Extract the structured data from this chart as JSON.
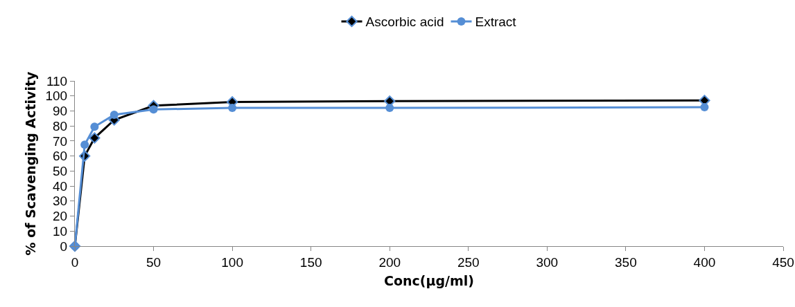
{
  "chart_data": {
    "type": "line",
    "xlabel": "Conc(µg/ml)",
    "ylabel": "% of Scavenging Activity",
    "x": [
      0,
      6.25,
      12.5,
      25,
      50,
      100,
      200,
      400
    ],
    "series": [
      {
        "name": "Ascorbic acid",
        "color": "#000000",
        "marker": "diamond",
        "values": [
          0,
          60,
          72,
          84,
          93.5,
          96,
          96.5,
          97
        ]
      },
      {
        "name": "Extract",
        "color": "#558ed5",
        "marker": "circle",
        "values": [
          0,
          67.5,
          79.5,
          87.5,
          91,
          92,
          92,
          92.5
        ]
      }
    ],
    "xlim": [
      0,
      450
    ],
    "xticks": [
      0,
      50,
      100,
      150,
      200,
      250,
      300,
      350,
      400,
      450
    ],
    "ylim": [
      0,
      110
    ],
    "yticks": [
      0,
      10,
      20,
      30,
      40,
      50,
      60,
      70,
      80,
      90,
      100,
      110
    ],
    "grid": false,
    "legend": "top",
    "line_style": "solid"
  }
}
